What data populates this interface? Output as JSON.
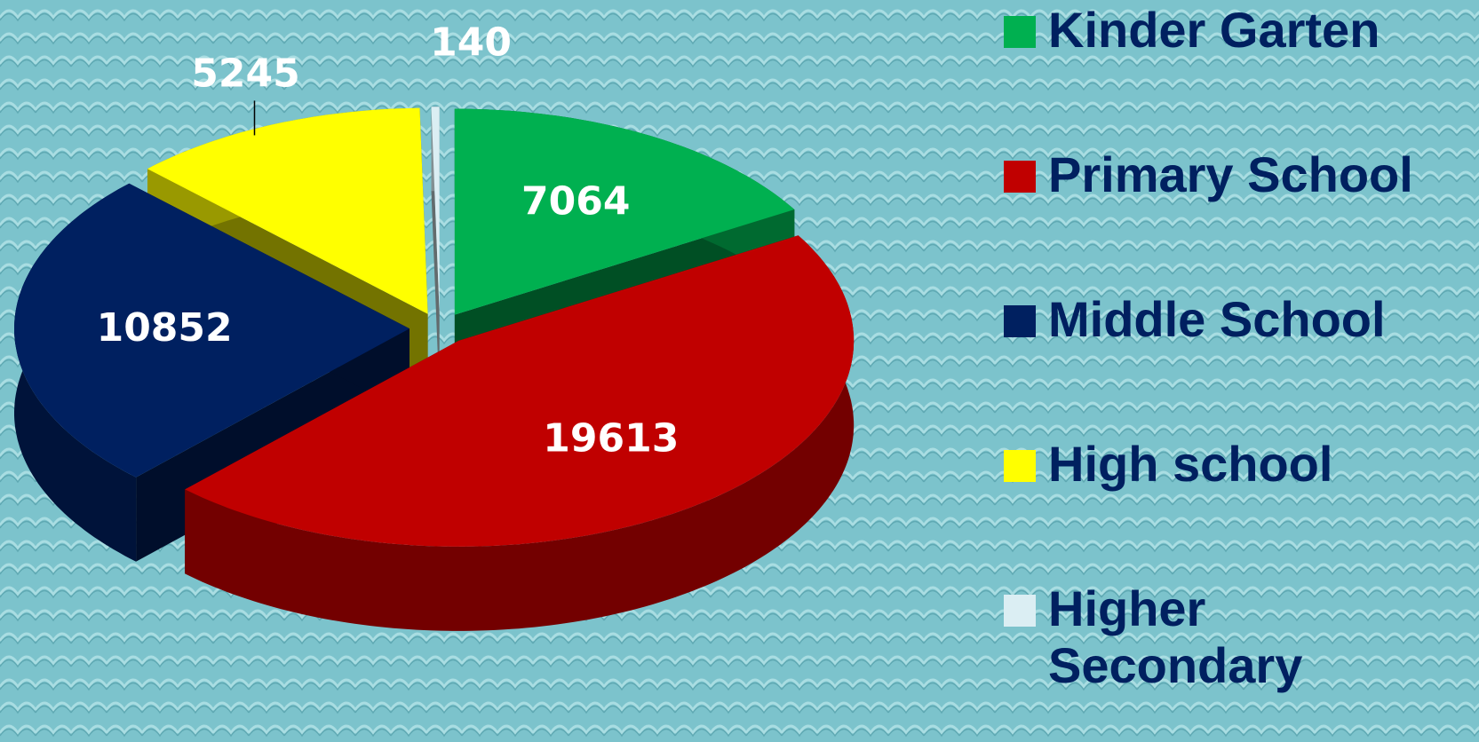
{
  "chart_data": {
    "type": "pie",
    "categories": [
      "Kinder Garten",
      "Primary School",
      "Middle School",
      "High school",
      "Higher Secondary"
    ],
    "values": [
      7064,
      19613,
      10852,
      5245,
      140
    ],
    "colors": [
      "#00b050",
      "#c00000",
      "#002060",
      "#ffff00",
      "#dbeef3"
    ],
    "legend": "right"
  }
}
